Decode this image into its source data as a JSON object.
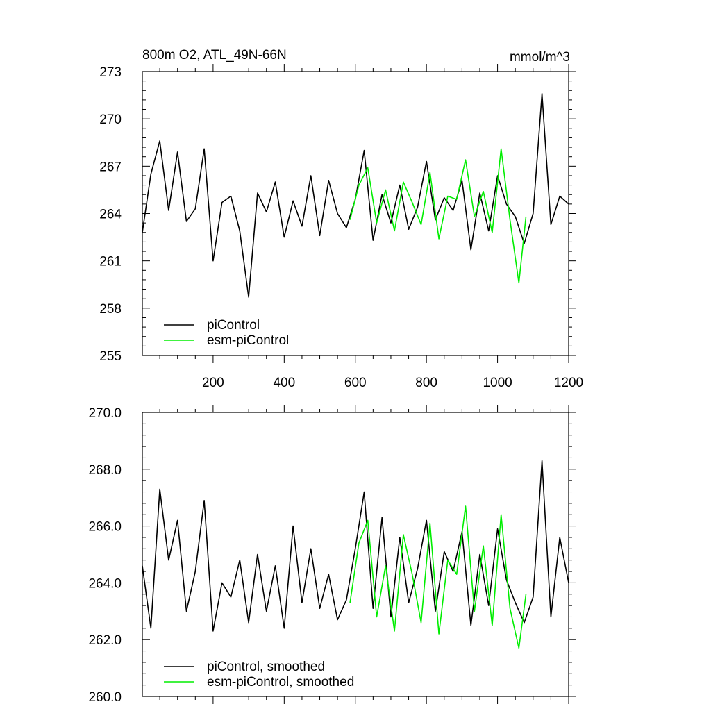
{
  "colors": {
    "picontrol": "#000000",
    "esm_picontrol": "#00ee00",
    "frame": "#000000"
  },
  "chart_data": [
    {
      "type": "line",
      "title": "800m O2, ATL_49N-66N",
      "units": "mmol/m^3",
      "xlim": [
        1,
        1200
      ],
      "ylim": [
        255,
        273
      ],
      "xticks": [
        200,
        400,
        600,
        800,
        1000,
        1200
      ],
      "xtick_labels": [
        "200",
        "400",
        "600",
        "800",
        "1000",
        "1200"
      ],
      "yticks": [
        255,
        258,
        261,
        264,
        267,
        270,
        273
      ],
      "ytick_labels": [
        "255",
        "258",
        "261",
        "264",
        "267",
        "270",
        "273"
      ],
      "legend_position": "bottom-left",
      "grid": false,
      "series": [
        {
          "name": "piControl",
          "color": "#000000",
          "x": [
            1,
            25,
            50,
            75,
            100,
            125,
            150,
            175,
            200,
            225,
            250,
            275,
            300,
            325,
            350,
            375,
            400,
            425,
            450,
            475,
            500,
            525,
            550,
            575,
            600,
            625,
            650,
            675,
            700,
            725,
            750,
            775,
            800,
            825,
            850,
            875,
            900,
            925,
            950,
            975,
            1000,
            1025,
            1050,
            1075,
            1100,
            1125,
            1150,
            1175,
            1200
          ],
          "values": [
            262.8,
            266.5,
            268.6,
            264.2,
            267.9,
            263.5,
            264.3,
            268.1,
            261.0,
            264.7,
            265.1,
            262.9,
            258.7,
            265.3,
            264.1,
            266.0,
            262.5,
            264.8,
            263.2,
            266.4,
            262.6,
            266.1,
            264.0,
            263.1,
            264.9,
            268.0,
            262.3,
            265.2,
            263.4,
            265.8,
            263.0,
            264.4,
            267.3,
            263.6,
            265.0,
            264.2,
            266.1,
            261.7,
            265.3,
            262.9,
            266.4,
            264.6,
            263.8,
            262.1,
            264.0,
            271.6,
            263.3,
            265.1,
            264.6
          ]
        },
        {
          "name": "esm-piControl",
          "color": "#00ee00",
          "x": [
            585,
            610,
            635,
            660,
            685,
            710,
            735,
            760,
            785,
            810,
            835,
            860,
            885,
            910,
            935,
            960,
            985,
            1010,
            1035,
            1060,
            1080
          ],
          "values": [
            263.6,
            265.8,
            266.9,
            263.4,
            265.5,
            262.9,
            266.0,
            264.7,
            263.3,
            266.6,
            262.4,
            265.1,
            264.9,
            267.4,
            263.8,
            265.4,
            262.8,
            268.1,
            263.6,
            259.6,
            263.8
          ]
        }
      ]
    },
    {
      "type": "line",
      "xlim": [
        1,
        1200
      ],
      "ylim": [
        260,
        270
      ],
      "yticks": [
        260,
        262,
        264,
        266,
        268,
        270
      ],
      "ytick_labels": [
        "260.0",
        "262.0",
        "264.0",
        "266.0",
        "268.0",
        "270.0"
      ],
      "legend_position": "bottom-left",
      "grid": false,
      "series": [
        {
          "name": "piControl, smoothed",
          "color": "#000000",
          "x": [
            1,
            25,
            50,
            75,
            100,
            125,
            150,
            175,
            200,
            225,
            250,
            275,
            300,
            325,
            350,
            375,
            400,
            425,
            450,
            475,
            500,
            525,
            550,
            575,
            600,
            625,
            650,
            675,
            700,
            725,
            750,
            775,
            800,
            825,
            850,
            875,
            900,
            925,
            950,
            975,
            1000,
            1025,
            1050,
            1075,
            1100,
            1125,
            1150,
            1175,
            1200
          ],
          "values": [
            264.6,
            262.4,
            267.3,
            264.8,
            266.2,
            263.0,
            264.4,
            266.9,
            262.3,
            264.0,
            263.5,
            264.8,
            262.6,
            265.0,
            263.0,
            264.6,
            262.4,
            266.0,
            263.3,
            265.2,
            263.1,
            264.3,
            262.7,
            263.4,
            265.2,
            267.2,
            263.1,
            266.3,
            262.8,
            265.6,
            263.3,
            264.5,
            266.2,
            263.0,
            265.1,
            264.4,
            265.8,
            262.5,
            265.0,
            263.2,
            265.9,
            264.1,
            263.3,
            262.6,
            263.5,
            268.3,
            262.8,
            265.6,
            264.0
          ]
        },
        {
          "name": "esm-piControl, smoothed",
          "color": "#00ee00",
          "x": [
            585,
            610,
            635,
            660,
            685,
            710,
            735,
            760,
            785,
            810,
            835,
            860,
            885,
            910,
            935,
            960,
            985,
            1010,
            1035,
            1060,
            1080
          ],
          "values": [
            263.3,
            265.4,
            266.2,
            262.8,
            264.6,
            262.3,
            265.7,
            264.3,
            262.6,
            266.1,
            262.2,
            264.8,
            264.3,
            266.7,
            263.0,
            265.3,
            262.5,
            266.4,
            263.1,
            261.7,
            263.6
          ]
        }
      ]
    }
  ]
}
